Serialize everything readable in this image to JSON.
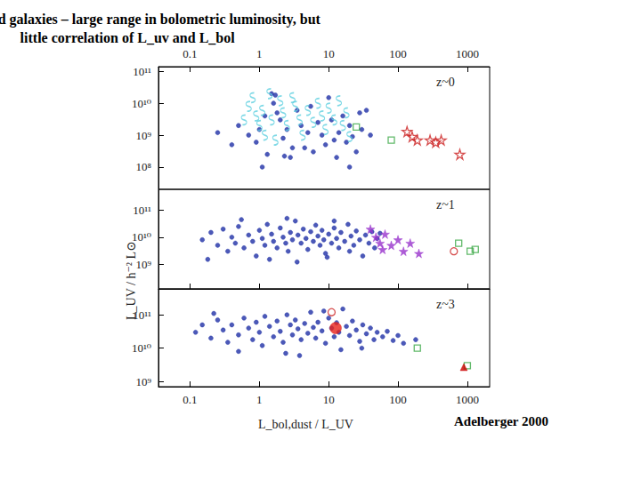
{
  "title": "UV selected galaxies – large range in bolometric luminosity, but\nlittle correlation of L_uv and L_bol",
  "xlabel": "L_bol,dust / L_UV",
  "ylabel": "L_UV / h⁻² L⊙",
  "annotation": "Adelberger 2000",
  "chart_data": [
    {
      "type": "scatter",
      "title": "z~0",
      "log": true,
      "grid": false,
      "tick_labels": true,
      "xlim": [
        0.035,
        2100
      ],
      "xticks": [
        0.1,
        1,
        10,
        100,
        1000
      ],
      "ylim": [
        20000000.0,
        140000000000.0
      ],
      "yticks": [
        {
          "value": 100000000.0,
          "label": "10⁸"
        },
        {
          "value": 1000000000.0,
          "label": "10⁹"
        },
        {
          "value": 10000000000.0,
          "label": "10¹⁰"
        },
        {
          "value": 100000000000.0,
          "label": "10¹¹"
        }
      ],
      "series": [
        {
          "color": "#1f2fa6",
          "marker": "circle",
          "x": [
            0.25,
            0.5,
            0.7,
            0.9,
            1.0,
            1.2,
            1.3,
            1.5,
            1.7,
            1.6,
            1.8,
            2,
            2.2,
            2.5,
            2.8,
            3,
            3.5,
            4,
            4.5,
            5,
            5.5,
            6,
            7,
            8,
            9,
            10,
            11,
            12,
            13,
            14,
            16,
            18,
            20,
            22,
            25,
            28,
            30,
            35,
            40,
            0.4,
            1.1,
            2.3,
            20
          ],
          "values": [
            1200000000.0,
            2000000000.0,
            1000000000.0,
            600000000.0,
            1500000000.0,
            4000000000.0,
            250000000.0,
            20000000000.0,
            18000000000.0,
            10000000000.0,
            5000000000.0,
            3000000000.0,
            800000000.0,
            1500000000.0,
            200000000.0,
            400000000.0,
            6000000000.0,
            2000000000.0,
            400000000.0,
            1200000000.0,
            8000000000.0,
            300000000.0,
            2500000000.0,
            1000000000.0,
            500000000.0,
            15000000000.0,
            3000000000.0,
            700000000.0,
            200000000.0,
            1200000000.0,
            4000000000.0,
            600000000.0,
            2000000000.0,
            900000000.0,
            300000000.0,
            5000000000.0,
            1500000000.0,
            6000000000.0,
            1000000000.0,
            500000000.0,
            100000000.0,
            220000000.0,
            100000000.0
          ]
        },
        {
          "color": "#5fd0e0",
          "marker": "squiggle",
          "x": [
            0.6,
            0.7,
            0.8,
            0.9,
            1.0,
            1.1,
            1.2,
            1.4,
            1.5,
            1.7,
            2,
            2.2,
            2.5,
            3,
            3.3,
            3.8,
            4.2,
            5,
            6,
            7,
            8,
            9,
            10,
            12,
            14,
            16,
            18,
            20
          ],
          "values": [
            3000000000.0,
            8000000000.0,
            15000000000.0,
            4000000000.0,
            2000000000.0,
            6000000000.0,
            1000000000.0,
            20000000000.0,
            3000000000.0,
            700000000.0,
            12000000000.0,
            5000000000.0,
            2000000000.0,
            15000000000.0,
            8000000000.0,
            3000000000.0,
            1000000000.0,
            6000000000.0,
            2500000000.0,
            10000000000.0,
            4000000000.0,
            1500000000.0,
            7000000000.0,
            3000000000.0,
            12000000000.0,
            2000000000.0,
            5000000000.0,
            900000000.0
          ]
        },
        {
          "color": "#3aa845",
          "marker": "square_open",
          "x": [
            25,
            80
          ],
          "values": [
            1800000000.0,
            700000000.0
          ]
        },
        {
          "color": "#cc2222",
          "marker": "star_open",
          "x": [
            135,
            160,
            190,
            290,
            350,
            420,
            780
          ],
          "values": [
            1300000000.0,
            900000000.0,
            700000000.0,
            700000000.0,
            600000000.0,
            700000000.0,
            250000000.0
          ]
        }
      ]
    },
    {
      "type": "scatter",
      "title": "z~1",
      "log": true,
      "grid": false,
      "tick_labels": "y",
      "xlim": [
        0.035,
        2100
      ],
      "xticks": [
        0.1,
        1,
        10,
        100,
        1000
      ],
      "ylim": [
        120000000.0,
        600000000000.0
      ],
      "yticks": [
        {
          "value": 1000000000.0,
          "label": "10⁹"
        },
        {
          "value": 10000000000.0,
          "label": "10¹⁰"
        },
        {
          "value": 100000000000.0,
          "label": "10¹¹"
        }
      ],
      "series": [
        {
          "color": "#1f2fa6",
          "marker": "circle",
          "x": [
            0.15,
            0.2,
            0.25,
            0.3,
            0.35,
            0.4,
            0.45,
            0.5,
            0.6,
            0.7,
            0.8,
            0.9,
            1.0,
            1.1,
            1.2,
            1.3,
            1.5,
            1.6,
            1.8,
            2.0,
            2.2,
            2.4,
            2.6,
            2.8,
            3.0,
            3.3,
            3.6,
            4.0,
            4.3,
            4.7,
            5.0,
            5.5,
            6.0,
            6.5,
            7.0,
            7.5,
            8.0,
            8.5,
            9.0,
            10,
            11,
            12,
            13,
            14,
            15,
            17,
            19,
            21,
            23,
            25,
            28,
            31,
            34,
            38,
            42,
            46,
            50,
            55,
            0.18,
            1.4,
            3.5,
            9.5,
            20,
            0.55,
            2.5,
            12
          ],
          "values": [
            8000000000.0,
            15000000000.0,
            5000000000.0,
            20000000000.0,
            3000000000.0,
            10000000000.0,
            6000000000.0,
            25000000000.0,
            4000000000.0,
            12000000000.0,
            7000000000.0,
            2000000000.0,
            18000000000.0,
            9000000000.0,
            5000000000.0,
            30000000000.0,
            13000000000.0,
            7000000000.0,
            4000000000.0,
            22000000000.0,
            10000000000.0,
            6000000000.0,
            3000000000.0,
            15000000000.0,
            8000000000.0,
            40000000000.0,
            12000000000.0,
            6000000000.0,
            20000000000.0,
            9000000000.0,
            3500000000.0,
            16000000000.0,
            7000000000.0,
            28000000000.0,
            11000000000.0,
            5000000000.0,
            18000000000.0,
            8000000000.0,
            2500000000.0,
            13000000000.0,
            6000000000.0,
            22000000000.0,
            9000000000.0,
            4000000000.0,
            15000000000.0,
            7000000000.0,
            30000000000.0,
            11000000000.0,
            5000000000.0,
            17000000000.0,
            8000000000.0,
            2000000000.0,
            12000000000.0,
            6000000000.0,
            16000000000.0,
            4000000000.0,
            9000000000.0,
            14000000000.0,
            1500000000.0,
            1500000000.0,
            1200000000.0,
            1800000000.0,
            3000000000.0,
            45000000000.0,
            50000000000.0,
            40000000000.0
          ]
        },
        {
          "color": "#9933cc",
          "marker": "star",
          "x": [
            40,
            48,
            55,
            65,
            80,
            100,
            120,
            150,
            200,
            60
          ],
          "values": [
            20000000000.0,
            10000000000.0,
            6000000000.0,
            13000000000.0,
            5000000000.0,
            8000000000.0,
            3000000000.0,
            6000000000.0,
            2500000000.0,
            3500000000.0
          ]
        },
        {
          "color": "#3aa845",
          "marker": "square_open",
          "x": [
            750,
            1100,
            1300
          ],
          "values": [
            6000000000.0,
            3000000000.0,
            3500000000.0
          ]
        },
        {
          "color": "#cc2222",
          "marker": "circle_open",
          "x": [
            640
          ],
          "values": [
            3000000000.0
          ]
        }
      ]
    },
    {
      "type": "scatter",
      "title": "z~3",
      "log": true,
      "grid": false,
      "tick_labels": true,
      "xlim": [
        0.035,
        2100
      ],
      "xticks": [
        0.1,
        1,
        10,
        100,
        1000
      ],
      "ylim": [
        700000000.0,
        600000000000.0
      ],
      "yticks": [
        {
          "value": 1000000000.0,
          "label": "10⁹"
        },
        {
          "value": 10000000000.0,
          "label": "10¹⁰"
        },
        {
          "value": 100000000000.0,
          "label": "10¹¹"
        }
      ],
      "series": [
        {
          "color": "#1f2fa6",
          "marker": "circle",
          "x": [
            0.12,
            0.15,
            0.2,
            0.25,
            0.3,
            0.35,
            0.4,
            0.5,
            0.6,
            0.7,
            0.8,
            0.9,
            1.0,
            1.1,
            1.2,
            1.4,
            1.6,
            1.8,
            2.0,
            2.2,
            2.5,
            2.8,
            3.0,
            3.3,
            3.6,
            4.0,
            4.5,
            5.0,
            5.5,
            6.0,
            6.5,
            7.0,
            8.0,
            9.0,
            10,
            11,
            12,
            13,
            14,
            16,
            18,
            20,
            22,
            25,
            28,
            31,
            35,
            40,
            45,
            50,
            60,
            70,
            85,
            100,
            120,
            0.5,
            2.4,
            15,
            0.22,
            8.5,
            30,
            180,
            3.8
          ],
          "values": [
            30000000000.0,
            50000000000.0,
            20000000000.0,
            70000000000.0,
            35000000000.0,
            15000000000.0,
            50000000000.0,
            25000000000.0,
            80000000000.0,
            40000000000.0,
            18000000000.0,
            60000000000.0,
            30000000000.0,
            12000000000.0,
            90000000000.0,
            45000000000.0,
            22000000000.0,
            65000000000.0,
            32000000000.0,
            15000000000.0,
            100000000000.0,
            50000000000.0,
            25000000000.0,
            70000000000.0,
            38000000000.0,
            18000000000.0,
            55000000000.0,
            28000000000.0,
            120000000000.0,
            42000000000.0,
            20000000000.0,
            60000000000.0,
            33000000000.0,
            14000000000.0,
            80000000000.0,
            40000000000.0,
            22000000000.0,
            58000000000.0,
            30000000000.0,
            150000000000.0,
            45000000000.0,
            24000000000.0,
            65000000000.0,
            35000000000.0,
            16000000000.0,
            50000000000.0,
            27000000000.0,
            40000000000.0,
            18000000000.0,
            30000000000.0,
            22000000000.0,
            32000000000.0,
            17000000000.0,
            24000000000.0,
            14000000000.0,
            8000000000.0,
            7000000000.0,
            9000000000.0,
            110000000000.0,
            130000000000.0,
            10000000000.0,
            18000000000.0,
            6000000000.0
          ]
        },
        {
          "color": "#e8201a",
          "marker": "large_circle",
          "x": [
            12.6
          ],
          "values": [
            40000000000.0
          ]
        },
        {
          "color": "#cc2222",
          "marker": "circle_open",
          "x": [
            11
          ],
          "values": [
            120000000000.0
          ]
        },
        {
          "color": "#3aa845",
          "marker": "square_open",
          "x": [
            190,
            1000
          ],
          "values": [
            10000000000.0,
            3000000000.0
          ]
        },
        {
          "color": "#cc0000",
          "marker": "triangle",
          "x": [
            890
          ],
          "values": [
            2700000000.0
          ]
        }
      ]
    }
  ]
}
